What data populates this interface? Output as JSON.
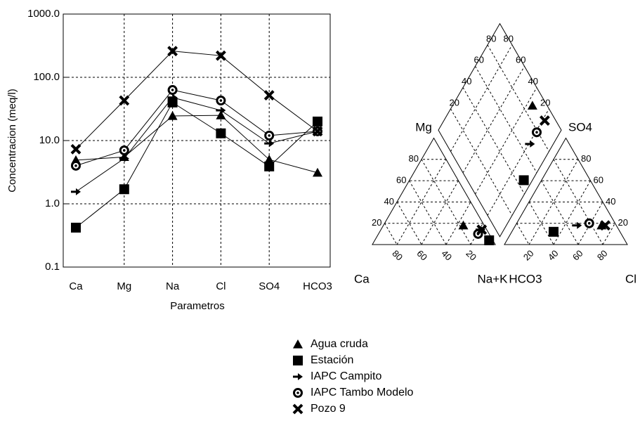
{
  "chart_data": [
    {
      "type": "line",
      "xlabel": "Parametros",
      "ylabel": "Concentracion (meq/l)",
      "categories": [
        "Ca",
        "Mg",
        "Na",
        "Cl",
        "SO4",
        "HCO3"
      ],
      "log_y": true,
      "grid": true,
      "ylim": [
        0.1,
        1000
      ],
      "yticks": [
        0.1,
        {
          "value": 1,
          "label": "1.0"
        },
        {
          "value": 10,
          "label": "10.0"
        },
        {
          "value": 100,
          "label": "100.0"
        },
        {
          "value": 1000,
          "label": "1000.0"
        }
      ],
      "series": [
        {
          "name": "Agua cruda",
          "marker": "triangle",
          "color": "#000000",
          "values": [
            4.9,
            5.5,
            24.5,
            25,
            5,
            3.1
          ]
        },
        {
          "name": "Estación",
          "marker": "square",
          "color": "#000000",
          "values": [
            0.42,
            1.7,
            40,
            13,
            3.9,
            20
          ]
        },
        {
          "name": "IAPC Campito",
          "marker": "arrow",
          "color": "#000000",
          "values": [
            1.55,
            5.2,
            48,
            30,
            9,
            14
          ]
        },
        {
          "name": "IAPC Tambo Modelo",
          "marker": "ring",
          "color": "#000000",
          "values": [
            4,
            7,
            63,
            43,
            12,
            14
          ]
        },
        {
          "name": "Pozo 9",
          "marker": "cross",
          "color": "#000000",
          "values": [
            7.3,
            43,
            260,
            220,
            52,
            14
          ]
        }
      ]
    },
    {
      "type": "piper",
      "cation_labels": [
        "Ca",
        "Mg",
        "Na+K"
      ],
      "anion_labels": [
        "HCO3",
        "SO4",
        "Cl"
      ],
      "ticks": [
        20,
        40,
        60,
        80
      ],
      "series": [
        {
          "cations": [
            17,
            18,
            65
          ],
          "anions": [
            12,
            18,
            70
          ]
        },
        {
          "cations": [
            3,
            4,
            93
          ],
          "anions": [
            54,
            12,
            34
          ]
        },
        {
          "cations": [
            5,
            14,
            81
          ],
          "anions": [
            32,
            18,
            50
          ]
        },
        {
          "cations": [
            9,
            10,
            81
          ],
          "anions": [
            21,
            20,
            59
          ]
        },
        {
          "cations": [
            4,
            14,
            82
          ],
          "anions": [
            9,
            18,
            73
          ]
        }
      ]
    }
  ]
}
